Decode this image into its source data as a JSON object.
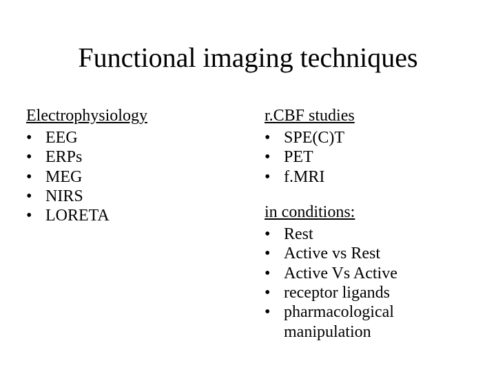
{
  "title": "Functional imaging techniques",
  "left": {
    "heading": "Electrophysiology",
    "items": [
      "EEG",
      "ERPs",
      "MEG",
      "NIRS",
      "LORETA"
    ]
  },
  "right": {
    "heading1": "r.CBF studies",
    "items1": [
      "SPE(C)T",
      "PET",
      "f.MRI"
    ],
    "heading2": "in conditions:",
    "items2": [
      "Rest",
      "Active vs Rest",
      "Active Vs Active",
      "receptor ligands",
      "pharmacological manipulation"
    ]
  },
  "bullet_char": "•",
  "colors": {
    "background": "#ffffff",
    "text": "#000000"
  },
  "fontsize": {
    "title": 40,
    "body": 24
  }
}
